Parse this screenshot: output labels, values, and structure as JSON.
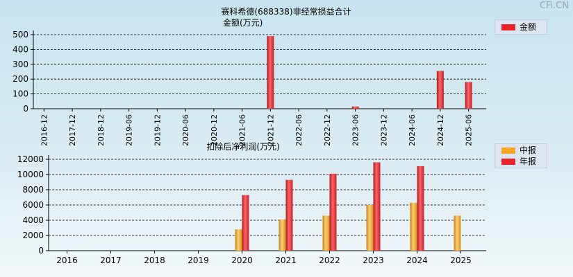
{
  "watermark": "CFi.CN",
  "colors": {
    "red": "#e8232a",
    "orange": "#f5a623"
  },
  "chart_data": [
    {
      "type": "bar",
      "title": "赛科希德(688338)非经常损益合计",
      "ylabel": "金额(万元)",
      "categories": [
        "2016-12",
        "2017-12",
        "2018-12",
        "2019-06",
        "2019-12",
        "2020-06",
        "2020-12",
        "2021-06",
        "2021-12",
        "2022-06",
        "2022-12",
        "2023-06",
        "2023-12",
        "2024-06",
        "2024-12",
        "2025-06"
      ],
      "series": [
        {
          "name": "金额",
          "color": "#e8232a",
          "values": [
            0,
            0,
            0,
            0,
            0,
            0,
            0,
            0,
            490,
            0,
            0,
            15,
            0,
            0,
            255,
            180
          ]
        }
      ],
      "ylim": [
        0,
        500
      ],
      "yticks": [
        "0",
        "100",
        "200",
        "300",
        "400",
        "500"
      ],
      "grid": true,
      "legend": "top-right"
    },
    {
      "type": "bar",
      "title": "扣除后净利润(万元)",
      "categories": [
        "2016",
        "2017",
        "2018",
        "2019",
        "2020",
        "2021",
        "2022",
        "2023",
        "2024",
        "2025"
      ],
      "series": [
        {
          "name": "中报",
          "color": "#f5a623",
          "values": [
            null,
            null,
            null,
            null,
            2800,
            4100,
            4600,
            6000,
            6300,
            4600
          ]
        },
        {
          "name": "年报",
          "color": "#e8232a",
          "values": [
            null,
            null,
            null,
            null,
            7300,
            9300,
            10100,
            11600,
            11100,
            null
          ]
        }
      ],
      "ylim": [
        0,
        12000
      ],
      "yticks": [
        "0",
        "2000",
        "4000",
        "6000",
        "8000",
        "10000",
        "12000"
      ],
      "grid": true,
      "legend": "top-right"
    }
  ]
}
